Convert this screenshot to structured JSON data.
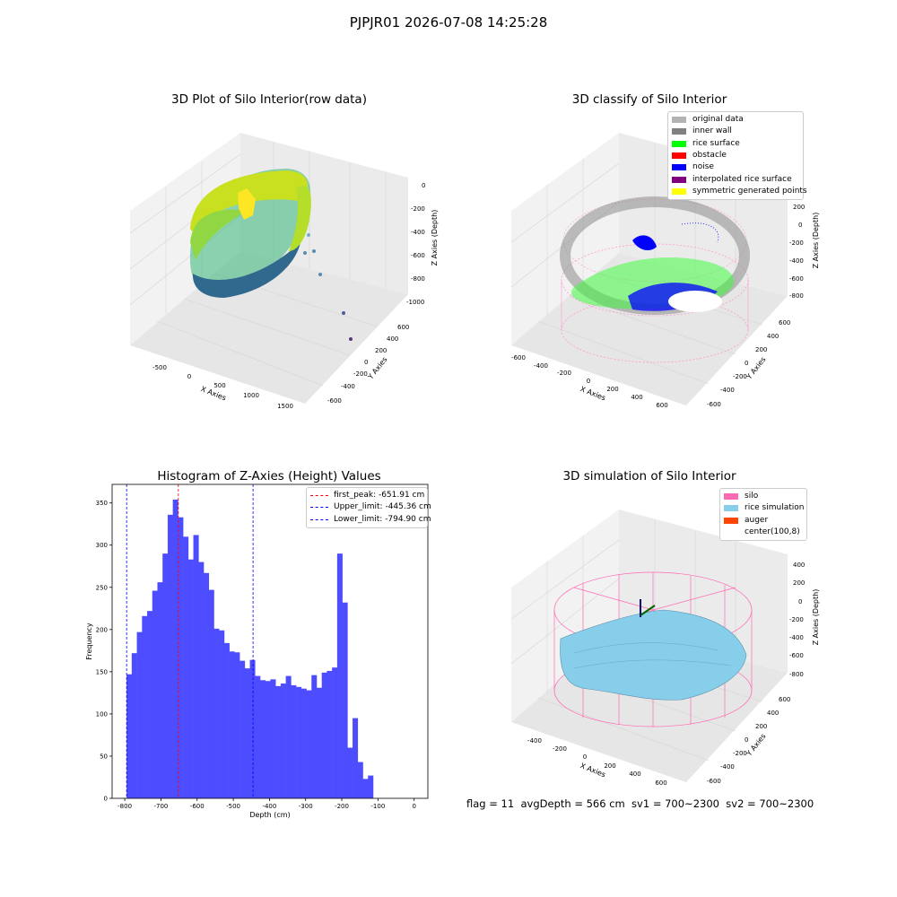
{
  "figure": {
    "suptitle": "PJPJR01 2026-07-08 14:25:28",
    "footer": "flag = 11  avgDepth = 566 cm  sv1 = 700~2300  sv2 = 700~2300"
  },
  "plot_raw": {
    "title": "3D Plot of Silo Interior(row data)",
    "xlabel": "X Axies",
    "ylabel": "Y Axies",
    "zlabel": "Z Axies (Depth)",
    "xticks": [
      "-500",
      "0",
      "500",
      "1000",
      "1500"
    ],
    "yticks": [
      "600",
      "400",
      "200",
      "0",
      "-200",
      "-400",
      "-600"
    ],
    "zticks": [
      "0",
      "-200",
      "-400",
      "-600",
      "-800",
      "-1000"
    ],
    "colormap": [
      "#440154",
      "#31688e",
      "#21918c",
      "#35b779",
      "#90d743",
      "#fde725"
    ]
  },
  "plot_classify": {
    "title": "3D classify of Silo Interior",
    "xlabel": "X Axies",
    "ylabel": "Y Axies",
    "zlabel": "Z Axies (Depth)",
    "xticks": [
      "-600",
      "-400",
      "-200",
      "0",
      "200",
      "400",
      "600"
    ],
    "yticks": [
      "600",
      "400",
      "200",
      "0",
      "-200",
      "-400",
      "-600"
    ],
    "zticks": [
      "200",
      "0",
      "-200",
      "-400",
      "-600",
      "-800"
    ],
    "legend": [
      {
        "label": "original data",
        "color": "#b3b3b3"
      },
      {
        "label": "inner wall",
        "color": "#808080"
      },
      {
        "label": "rice surface",
        "color": "#00ff00"
      },
      {
        "label": "obstacle",
        "color": "#ff0000"
      },
      {
        "label": "noise",
        "color": "#0000ff"
      },
      {
        "label": "interpolated rice surface",
        "color": "#800080"
      },
      {
        "label": "symmetric generated points",
        "color": "#ffff00"
      }
    ]
  },
  "plot_sim": {
    "title": "3D simulation of Silo Interior",
    "xlabel": "X Axies",
    "ylabel": "Y Axies",
    "zlabel": "Z Axies (Depth)",
    "xticks": [
      "-400",
      "-200",
      "0",
      "200",
      "400",
      "600"
    ],
    "yticks": [
      "600",
      "400",
      "200",
      "0",
      "-200",
      "-400",
      "-600"
    ],
    "zticks": [
      "400",
      "200",
      "0",
      "-200",
      "-400",
      "-600",
      "-800"
    ],
    "legend": [
      {
        "label": "silo",
        "color": "#ff69b4"
      },
      {
        "label": "rice simulation",
        "color": "#87ceeb"
      },
      {
        "label": "auger",
        "color": "#ff4500"
      },
      {
        "label": "center(100,8)",
        "color": ""
      }
    ]
  },
  "chart_data": {
    "type": "bar",
    "title": "Histogram of Z-Axies (Height) Values",
    "xlabel": "Depth (cm)",
    "ylabel": "Frequency",
    "xlim": [
      -835,
      38
    ],
    "ylim": [
      0,
      372
    ],
    "xticks": [
      -800,
      -700,
      -600,
      -500,
      -400,
      -300,
      -200,
      -100,
      0
    ],
    "yticks": [
      0,
      50,
      100,
      150,
      200,
      250,
      300,
      350
    ],
    "bar_color": "#4d4dff",
    "bin_start": -795,
    "bin_width": 14.2,
    "values": [
      147,
      172,
      197,
      216,
      222,
      246,
      256,
      290,
      336,
      354,
      333,
      310,
      283,
      312,
      280,
      267,
      247,
      201,
      199,
      184,
      174,
      173,
      163,
      154,
      164,
      145,
      140,
      139,
      141,
      133,
      136,
      145,
      134,
      132,
      130,
      128,
      146,
      131,
      149,
      151,
      155,
      290,
      232,
      60,
      95,
      43,
      23,
      27
    ],
    "lines": [
      {
        "label": "first_peak: -651.91 cm",
        "x": -651.91,
        "color": "#ff0000"
      },
      {
        "label": "Upper_limit: -445.36 cm",
        "x": -445.36,
        "color": "#0000ff"
      },
      {
        "label": "Lower_limit: -794.90 cm",
        "x": -794.9,
        "color": "#0000ff"
      }
    ],
    "legend_position": "upper right"
  }
}
